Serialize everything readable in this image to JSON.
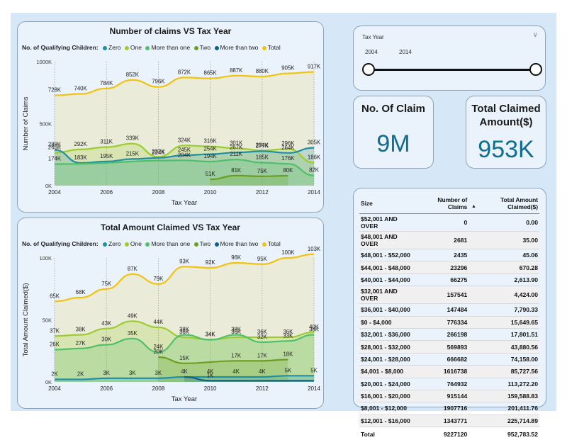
{
  "chart_data": [
    {
      "type": "area",
      "title": "Number of claims VS Tax Year",
      "xlabel": "Tax Year",
      "ylabel": "Number of Claims",
      "legend_title": "No. of Qualifying Children:",
      "x": [
        2004,
        2005,
        2006,
        2007,
        2008,
        2009,
        2010,
        2011,
        2012,
        2013,
        2014
      ],
      "x_ticks": [
        "2004",
        "2006",
        "2008",
        "2010",
        "2012",
        "2014"
      ],
      "ylim": [
        0,
        1000000
      ],
      "y_ticks": [
        {
          "v": 0,
          "label": "0K"
        },
        {
          "v": 500000,
          "label": "500K"
        },
        {
          "v": 1000000,
          "label": "1000K"
        }
      ],
      "series": [
        {
          "name": "Zero",
          "color": "#1f8fa6",
          "values": [
            288000,
            183000,
            195000,
            215000,
            224000,
            245000,
            254000,
            267000,
            277000,
            264000,
            305000
          ],
          "labels": [
            "288K",
            "183K",
            "195K",
            "215K",
            "224K",
            "245K",
            "254K",
            "267K",
            "277K",
            "264K",
            "305K"
          ]
        },
        {
          "name": "One",
          "color": "#9ccc2e",
          "values": [
            265000,
            292000,
            311000,
            339000,
            232000,
            324000,
            316000,
            301000,
            284000,
            296000,
            186000
          ],
          "labels": [
            "265K",
            "292K",
            "311K",
            "339K",
            "232K",
            "324K",
            "316K",
            "301K",
            "284K",
            "296K",
            "186K"
          ]
        },
        {
          "name": "More than one",
          "color": "#4fc06a",
          "values": [
            174000,
            null,
            null,
            null,
            null,
            204000,
            194000,
            211000,
            185000,
            176000,
            82000
          ],
          "labels": [
            "174K",
            "",
            "",
            "",
            "",
            "204K",
            "194K",
            "211K",
            "185K",
            "176K",
            "82K"
          ]
        },
        {
          "name": "Two",
          "color": "#6b9e1f",
          "values": [
            null,
            null,
            null,
            null,
            null,
            null,
            51000,
            81000,
            75000,
            80000,
            null
          ],
          "labels": [
            "",
            "",
            "",
            "",
            "",
            "",
            "51K",
            "81K",
            "75K",
            "80K",
            ""
          ]
        },
        {
          "name": "More than two",
          "color": "#0e5f8a",
          "values": [
            null,
            null,
            null,
            null,
            null,
            null,
            null,
            null,
            null,
            null,
            null
          ],
          "labels": []
        },
        {
          "name": "Total",
          "color": "#f2c20e",
          "values": [
            728000,
            740000,
            784000,
            852000,
            796000,
            872000,
            865000,
            887000,
            880000,
            905000,
            917000
          ],
          "labels": [
            "728K",
            "740K",
            "784K",
            "852K",
            "796K",
            "872K",
            "865K",
            "887K",
            "880K",
            "905K",
            "917K"
          ]
        }
      ]
    },
    {
      "type": "area",
      "title": "Total Amount Claimed VS Tax Year",
      "xlabel": "Tax Year",
      "ylabel": "Total Amount Claimed($)",
      "legend_title": "No. of Qualifying Children:",
      "x": [
        2004,
        2005,
        2006,
        2007,
        2008,
        2009,
        2010,
        2011,
        2012,
        2013,
        2014
      ],
      "x_ticks": [
        "2004",
        "2006",
        "2008",
        "2010",
        "2012",
        "2014"
      ],
      "ylim": [
        0,
        100000
      ],
      "y_ticks": [
        {
          "v": 0,
          "label": "0K"
        },
        {
          "v": 50000,
          "label": "50K"
        },
        {
          "v": 100000,
          "label": "100K"
        }
      ],
      "series": [
        {
          "name": "Zero",
          "color": "#1f8fa6",
          "values": [
            2000,
            2000,
            3000,
            3000,
            3000,
            4000,
            4000,
            4000,
            4000,
            5000,
            5000
          ],
          "labels": [
            "2K",
            "2K",
            "3K",
            "3K",
            "3K",
            "4K",
            "4K",
            "4K",
            "4K",
            "5K",
            "5K"
          ]
        },
        {
          "name": "One",
          "color": "#9ccc2e",
          "values": [
            37000,
            38000,
            43000,
            49000,
            44000,
            36000,
            34000,
            36000,
            36000,
            36000,
            40000
          ],
          "labels": [
            "37K",
            "38K",
            "43K",
            "49K",
            "44K",
            "36K",
            "34K",
            "36K",
            "36K",
            "36K",
            "40K"
          ]
        },
        {
          "name": "More than one",
          "color": "#4fc06a",
          "values": [
            26000,
            27000,
            30000,
            35000,
            24000,
            38000,
            34000,
            38000,
            32000,
            33000,
            38000
          ],
          "labels": [
            "26K",
            "27K",
            "30K",
            "35K",
            "24K",
            "38K",
            "34K",
            "38K",
            "32K",
            "33K",
            "38K"
          ]
        },
        {
          "name": "Two",
          "color": "#6b9e1f",
          "values": [
            null,
            null,
            null,
            null,
            20000,
            15000,
            null,
            17000,
            17000,
            18000,
            null
          ],
          "labels": [
            "",
            "",
            "",
            "",
            "20K",
            "15K",
            "",
            "17K",
            "17K",
            "18K",
            ""
          ]
        },
        {
          "name": "More than two",
          "color": "#0e5f8a",
          "values": [
            null,
            null,
            null,
            null,
            null,
            4000,
            1000,
            1000,
            1000,
            1000,
            1000
          ],
          "labels": [
            "",
            "",
            "",
            "",
            "",
            "",
            "1K",
            "",
            "",
            "",
            ""
          ]
        },
        {
          "name": "Total",
          "color": "#f2c20e",
          "values": [
            65000,
            68000,
            75000,
            87000,
            79000,
            93000,
            92000,
            96000,
            95000,
            100000,
            103000
          ],
          "labels": [
            "65K",
            "68K",
            "75K",
            "87K",
            "79K",
            "93K",
            "92K",
            "96K",
            "95K",
            "100K",
            "103K"
          ]
        }
      ]
    }
  ],
  "slicer": {
    "label": "Tax Year",
    "start": "2004",
    "end": "2014"
  },
  "kpis": [
    {
      "title_line1": "No. Of Claim",
      "title_line2": "",
      "value": "9M"
    },
    {
      "title_line1": "Total Claimed",
      "title_line2": "Amount($)",
      "value": "953K"
    }
  ],
  "table": {
    "headers": [
      "Size",
      "Number of Claims",
      "Total Amount Claimed($)"
    ],
    "rows": [
      [
        "$52,001 AND OVER",
        "0",
        "0.00"
      ],
      [
        "$48,001 AND OVER",
        "2681",
        "35.00"
      ],
      [
        "$48,001 - $52,000",
        "2435",
        "45.06"
      ],
      [
        "$44,001 - $48,000",
        "23296",
        "670.28"
      ],
      [
        "$40,001 - $44,000",
        "66275",
        "2,613.90"
      ],
      [
        "$32,001 AND OVER",
        "157541",
        "4,424.00"
      ],
      [
        "$36,001 - $40,000",
        "147484",
        "7,790.33"
      ],
      [
        "$0 - $4,000",
        "776334",
        "15,649.65"
      ],
      [
        "$32,001 - $36,000",
        "266198",
        "17,801.51"
      ],
      [
        "$28,001 - $32,000",
        "569893",
        "43,880.56"
      ],
      [
        "$24,001 - $28,000",
        "666682",
        "74,158.00"
      ],
      [
        "$4,001 - $8,000",
        "1616738",
        "85,727.56"
      ],
      [
        "$20,001 - $24,000",
        "764932",
        "113,272.20"
      ],
      [
        "$16,001 - $20,000",
        "915144",
        "159,588.83"
      ],
      [
        "$8,001 - $12,000",
        "1907716",
        "201,411.76"
      ],
      [
        "$12,001 - $16,000",
        "1343771",
        "225,714.89"
      ]
    ],
    "total": [
      "Total",
      "9227120",
      "952,783.52"
    ]
  }
}
